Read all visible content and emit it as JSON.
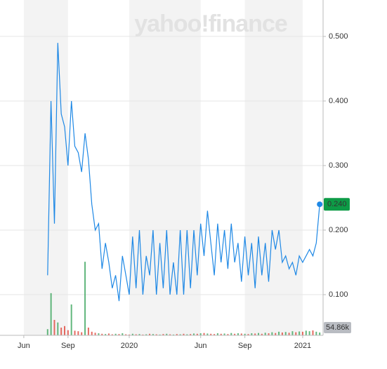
{
  "chart_data": {
    "type": "line",
    "watermark": "yahoo!finance",
    "color": "#1e88e5",
    "up_color": "#3ba55c",
    "down_color": "#e0453a",
    "grid": true,
    "xlim": [
      -7,
      88
    ],
    "xticks": [
      {
        "value": 0,
        "label": "Jun"
      },
      {
        "value": 13,
        "label": "Sep"
      },
      {
        "value": 31,
        "label": "2020"
      },
      {
        "value": 52,
        "label": "Jun"
      },
      {
        "value": 65,
        "label": "Sep"
      },
      {
        "value": 82,
        "label": "2021"
      }
    ],
    "ylim": [
      0.037,
      0.551
    ],
    "yticks": [
      {
        "value": 0.1,
        "label": "0.100"
      },
      {
        "value": 0.2,
        "label": "0.200"
      },
      {
        "value": 0.3,
        "label": "0.300"
      },
      {
        "value": 0.4,
        "label": "0.400"
      },
      {
        "value": 0.5,
        "label": "0.500"
      }
    ],
    "x": [
      7,
      8,
      9,
      10,
      11,
      12,
      13,
      14,
      15,
      16,
      17,
      18,
      19,
      20,
      21,
      22,
      23,
      24,
      25,
      26,
      27,
      28,
      29,
      30,
      31,
      32,
      33,
      34,
      35,
      36,
      37,
      38,
      39,
      40,
      41,
      42,
      43,
      44,
      45,
      46,
      47,
      48,
      49,
      50,
      51,
      52,
      53,
      54,
      55,
      56,
      57,
      58,
      59,
      60,
      61,
      62,
      63,
      64,
      65,
      66,
      67,
      68,
      69,
      70,
      71,
      72,
      73,
      74,
      75,
      76,
      77,
      78,
      79,
      80,
      81,
      82,
      83,
      84,
      85,
      86,
      87
    ],
    "values": [
      0.13,
      0.4,
      0.21,
      0.49,
      0.38,
      0.36,
      0.3,
      0.4,
      0.33,
      0.32,
      0.29,
      0.35,
      0.31,
      0.24,
      0.2,
      0.21,
      0.14,
      0.18,
      0.15,
      0.11,
      0.13,
      0.09,
      0.16,
      0.13,
      0.1,
      0.19,
      0.11,
      0.2,
      0.1,
      0.16,
      0.13,
      0.2,
      0.1,
      0.18,
      0.11,
      0.2,
      0.1,
      0.15,
      0.1,
      0.2,
      0.1,
      0.2,
      0.11,
      0.2,
      0.13,
      0.21,
      0.16,
      0.23,
      0.18,
      0.13,
      0.21,
      0.15,
      0.2,
      0.14,
      0.21,
      0.15,
      0.18,
      0.12,
      0.19,
      0.13,
      0.18,
      0.11,
      0.19,
      0.13,
      0.18,
      0.12,
      0.2,
      0.17,
      0.2,
      0.15,
      0.16,
      0.14,
      0.15,
      0.13,
      0.16,
      0.15,
      0.16,
      0.17,
      0.16,
      0.18,
      0.24
    ],
    "volume": [
      120000,
      820000,
      300000,
      250000,
      150000,
      180000,
      100000,
      600000,
      90000,
      80000,
      60000,
      1430000,
      150000,
      70000,
      50000,
      40000,
      30000,
      25000,
      35000,
      20000,
      30000,
      25000,
      40000,
      20000,
      15000,
      30000,
      20000,
      25000,
      15000,
      20000,
      30000,
      25000,
      20000,
      15000,
      25000,
      30000,
      20000,
      15000,
      25000,
      20000,
      30000,
      20000,
      25000,
      35000,
      30000,
      40000,
      45000,
      35000,
      30000,
      25000,
      40000,
      30000,
      35000,
      25000,
      45000,
      30000,
      40000,
      35000,
      30000,
      25000,
      40000,
      35000,
      45000,
      30000,
      50000,
      40000,
      60000,
      45000,
      70000,
      55000,
      65000,
      50000,
      80000,
      60000,
      75000,
      70000,
      90000,
      80000,
      95000,
      70000,
      54860
    ],
    "volume_lim": [
      0,
      1500000
    ],
    "last_price": {
      "value": 0.24,
      "label": "0.240"
    },
    "last_volume": {
      "value": 54860,
      "label": "54.86k"
    }
  }
}
